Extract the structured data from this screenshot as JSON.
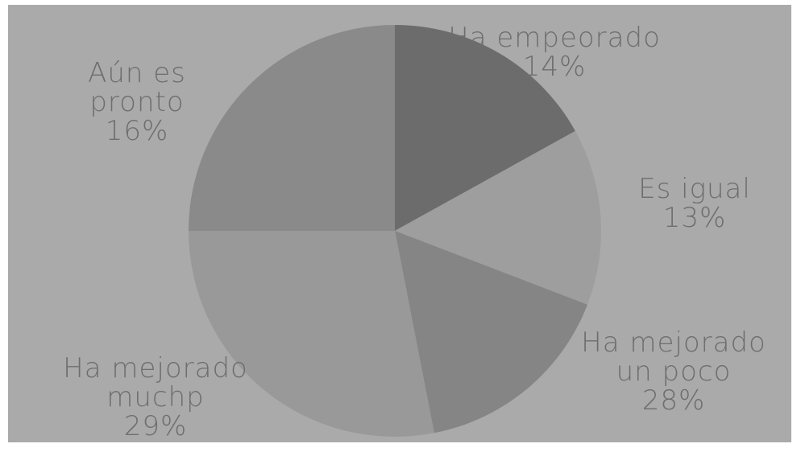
{
  "chart_data": {
    "type": "pie",
    "title": "",
    "slices": [
      {
        "label_lines": [
          "Ha empeorado"
        ],
        "pct": "14%",
        "value": 14,
        "color": "#6c6c6c"
      },
      {
        "label_lines": [
          "Es igual"
        ],
        "pct": "13%",
        "value": 13,
        "color": "#9e9e9e"
      },
      {
        "label_lines": [
          "Ha mejorado",
          "un poco"
        ],
        "pct": "28%",
        "value": 28,
        "color": "#858585"
      },
      {
        "label_lines": [
          "Ha mejorado",
          "muchp"
        ],
        "pct": "29%",
        "value": 29,
        "color": "#999999"
      },
      {
        "label_lines": [
          "Aún es",
          "pronto"
        ],
        "pct": "16%",
        "value": 16,
        "color": "#8a8a8a"
      }
    ],
    "label_color": "#6e6e6e",
    "background": "#aaaaaa"
  }
}
